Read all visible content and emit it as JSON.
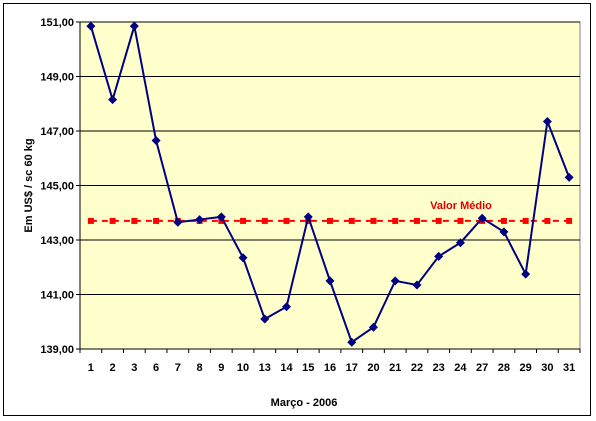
{
  "chart_data": {
    "type": "line",
    "title": "",
    "xlabel": "Março - 2006",
    "ylabel": "Em US$ / sc 60 kg",
    "ylim": [
      139,
      151
    ],
    "yticks": [
      "139,00",
      "141,00",
      "143,00",
      "145,00",
      "147,00",
      "149,00",
      "151,00"
    ],
    "categories": [
      "1",
      "2",
      "3",
      "6",
      "7",
      "8",
      "9",
      "10",
      "13",
      "14",
      "15",
      "16",
      "17",
      "20",
      "21",
      "22",
      "23",
      "24",
      "27",
      "28",
      "29",
      "30",
      "31"
    ],
    "grid": "horizontal",
    "series": [
      {
        "values": [
          150.85,
          148.15,
          150.85,
          146.65,
          143.65,
          143.75,
          143.85,
          142.35,
          140.1,
          140.55,
          143.85,
          141.5,
          139.25,
          139.8,
          141.5,
          141.35,
          142.4,
          142.9,
          143.8,
          143.3,
          141.75,
          147.35,
          145.3
        ],
        "color": "#000080",
        "marker": "diamond"
      },
      {
        "values": [
          143.7,
          143.7,
          143.7,
          143.7,
          143.7,
          143.7,
          143.7,
          143.7,
          143.7,
          143.7,
          143.7,
          143.7,
          143.7,
          143.7,
          143.7,
          143.7,
          143.7,
          143.7,
          143.7,
          143.7,
          143.7,
          143.7,
          143.7
        ],
        "color": "#ff0000",
        "marker": "square",
        "line": "dashed"
      }
    ],
    "annotations": [
      {
        "text": "Valor Médio",
        "color": "#e00000"
      }
    ],
    "plot_background": "#ffffcc",
    "gridline_color": "#000000"
  }
}
